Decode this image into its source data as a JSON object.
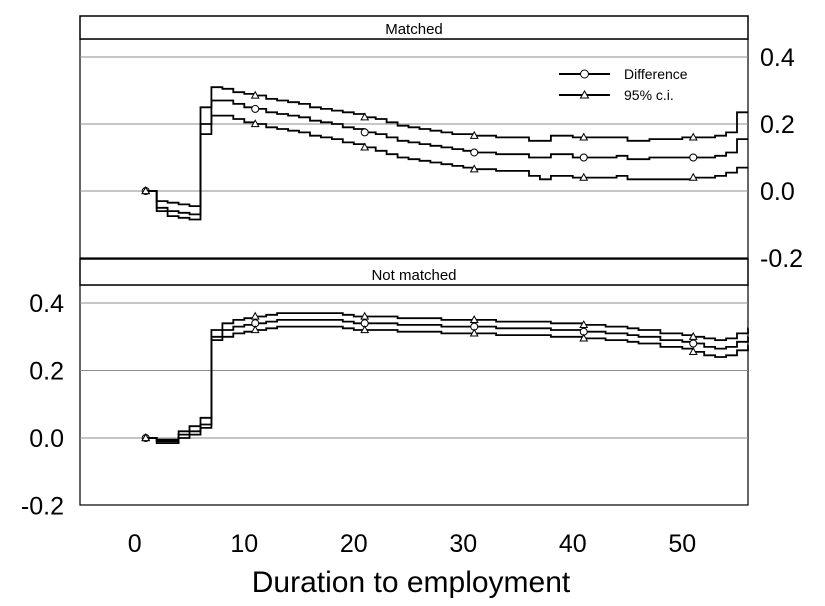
{
  "chart_data": [
    {
      "type": "line",
      "title": "Matched",
      "xlabel": "Duration to employment",
      "ylabel": "",
      "xlim": [
        -5,
        56
      ],
      "ylim": [
        -0.2,
        0.4
      ],
      "yticks": [
        "0.4",
        "0.2",
        "0.0",
        "-0.2"
      ],
      "xticks": [
        "0",
        "10",
        "20",
        "30",
        "40",
        "50"
      ],
      "y_axis_side": "right",
      "grid": "horizontal",
      "legend": {
        "placement": "top-right",
        "entries": [
          {
            "label": "Difference",
            "marker": "circle"
          },
          {
            "label": "95% c.i.",
            "marker": "triangle"
          }
        ]
      },
      "series": [
        {
          "name": "Difference",
          "marker": "circle",
          "x": [
            1,
            2,
            3,
            4,
            5,
            6,
            7,
            8,
            9,
            10,
            11,
            12,
            13,
            14,
            15,
            16,
            17,
            18,
            19,
            20,
            21,
            22,
            23,
            24,
            25,
            26,
            27,
            28,
            29,
            30,
            31,
            32,
            33,
            34,
            35,
            36,
            37,
            38,
            39,
            40,
            41,
            42,
            43,
            44,
            45,
            46,
            47,
            48,
            49,
            50,
            51,
            52,
            53,
            54,
            55,
            56
          ],
          "y": [
            0.0,
            -0.05,
            -0.06,
            -0.065,
            -0.07,
            0.2,
            0.27,
            0.27,
            0.26,
            0.25,
            0.245,
            0.235,
            0.23,
            0.225,
            0.22,
            0.21,
            0.205,
            0.2,
            0.19,
            0.185,
            0.175,
            0.17,
            0.16,
            0.15,
            0.145,
            0.14,
            0.135,
            0.13,
            0.125,
            0.12,
            0.115,
            0.115,
            0.11,
            0.11,
            0.11,
            0.1,
            0.1,
            0.11,
            0.11,
            0.1,
            0.1,
            0.1,
            0.1,
            0.105,
            0.095,
            0.095,
            0.1,
            0.1,
            0.1,
            0.1,
            0.1,
            0.1,
            0.105,
            0.115,
            0.155,
            0.155
          ]
        },
        {
          "name": "95% c.i.",
          "marker": "triangle",
          "x": [
            1,
            2,
            3,
            4,
            5,
            6,
            7,
            8,
            9,
            10,
            11,
            12,
            13,
            14,
            15,
            16,
            17,
            18,
            19,
            20,
            21,
            22,
            23,
            24,
            25,
            26,
            27,
            28,
            29,
            30,
            31,
            32,
            33,
            34,
            35,
            36,
            37,
            38,
            39,
            40,
            41,
            42,
            43,
            44,
            45,
            46,
            47,
            48,
            49,
            50,
            51,
            52,
            53,
            54,
            55,
            56
          ],
          "y": [
            0.0,
            -0.03,
            -0.035,
            -0.04,
            -0.045,
            0.25,
            0.31,
            0.305,
            0.295,
            0.29,
            0.285,
            0.275,
            0.27,
            0.265,
            0.26,
            0.25,
            0.245,
            0.24,
            0.235,
            0.23,
            0.22,
            0.215,
            0.205,
            0.195,
            0.19,
            0.185,
            0.18,
            0.175,
            0.17,
            0.17,
            0.165,
            0.165,
            0.16,
            0.16,
            0.16,
            0.15,
            0.15,
            0.165,
            0.165,
            0.16,
            0.16,
            0.16,
            0.16,
            0.16,
            0.15,
            0.15,
            0.155,
            0.155,
            0.155,
            0.16,
            0.16,
            0.16,
            0.165,
            0.175,
            0.235,
            0.235
          ]
        },
        {
          "name": "95% c.i.",
          "marker": "triangle",
          "x": [
            1,
            2,
            3,
            4,
            5,
            6,
            7,
            8,
            9,
            10,
            11,
            12,
            13,
            14,
            15,
            16,
            17,
            18,
            19,
            20,
            21,
            22,
            23,
            24,
            25,
            26,
            27,
            28,
            29,
            30,
            31,
            32,
            33,
            34,
            35,
            36,
            37,
            38,
            39,
            40,
            41,
            42,
            43,
            44,
            45,
            46,
            47,
            48,
            49,
            50,
            51,
            52,
            53,
            54,
            55,
            56
          ],
          "y": [
            0.0,
            -0.06,
            -0.075,
            -0.08,
            -0.085,
            0.17,
            0.225,
            0.225,
            0.215,
            0.205,
            0.2,
            0.19,
            0.185,
            0.18,
            0.175,
            0.165,
            0.16,
            0.155,
            0.145,
            0.14,
            0.13,
            0.12,
            0.11,
            0.1,
            0.095,
            0.09,
            0.085,
            0.08,
            0.075,
            0.07,
            0.065,
            0.065,
            0.06,
            0.06,
            0.06,
            0.045,
            0.035,
            0.045,
            0.045,
            0.04,
            0.04,
            0.04,
            0.04,
            0.045,
            0.035,
            0.035,
            0.035,
            0.035,
            0.035,
            0.035,
            0.04,
            0.04,
            0.045,
            0.055,
            0.07,
            0.07
          ]
        }
      ]
    },
    {
      "type": "line",
      "title": "Not matched",
      "xlabel": "Duration to employment",
      "ylabel": "",
      "xlim": [
        -5,
        56
      ],
      "ylim": [
        -0.2,
        0.4
      ],
      "yticks": [
        "0.4",
        "0.2",
        "0.0",
        "-0.2"
      ],
      "xticks": [
        "0",
        "10",
        "20",
        "30",
        "40",
        "50"
      ],
      "y_axis_side": "left",
      "grid": "horizontal",
      "series": [
        {
          "name": "Difference",
          "marker": "circle",
          "x": [
            1,
            2,
            3,
            4,
            5,
            6,
            7,
            8,
            9,
            10,
            11,
            12,
            13,
            14,
            15,
            16,
            17,
            18,
            19,
            20,
            21,
            22,
            23,
            24,
            25,
            26,
            27,
            28,
            29,
            30,
            31,
            32,
            33,
            34,
            35,
            36,
            37,
            38,
            39,
            40,
            41,
            42,
            43,
            44,
            45,
            46,
            47,
            48,
            49,
            50,
            51,
            52,
            53,
            54,
            55,
            56
          ],
          "y": [
            0.0,
            -0.01,
            -0.01,
            0.01,
            0.02,
            0.04,
            0.3,
            0.32,
            0.33,
            0.335,
            0.34,
            0.345,
            0.35,
            0.35,
            0.35,
            0.35,
            0.35,
            0.35,
            0.345,
            0.34,
            0.34,
            0.34,
            0.34,
            0.335,
            0.335,
            0.335,
            0.335,
            0.33,
            0.33,
            0.33,
            0.33,
            0.33,
            0.325,
            0.325,
            0.325,
            0.325,
            0.325,
            0.32,
            0.32,
            0.32,
            0.315,
            0.315,
            0.31,
            0.31,
            0.305,
            0.3,
            0.3,
            0.29,
            0.29,
            0.285,
            0.28,
            0.27,
            0.265,
            0.27,
            0.285,
            0.3
          ]
        },
        {
          "name": "95% c.i.",
          "marker": "triangle",
          "x": [
            1,
            2,
            3,
            4,
            5,
            6,
            7,
            8,
            9,
            10,
            11,
            12,
            13,
            14,
            15,
            16,
            17,
            18,
            19,
            20,
            21,
            22,
            23,
            24,
            25,
            26,
            27,
            28,
            29,
            30,
            31,
            32,
            33,
            34,
            35,
            36,
            37,
            38,
            39,
            40,
            41,
            42,
            43,
            44,
            45,
            46,
            47,
            48,
            49,
            50,
            51,
            52,
            53,
            54,
            55,
            56
          ],
          "y": [
            0.0,
            -0.005,
            -0.005,
            0.02,
            0.035,
            0.06,
            0.32,
            0.34,
            0.35,
            0.355,
            0.36,
            0.365,
            0.37,
            0.37,
            0.37,
            0.37,
            0.37,
            0.37,
            0.365,
            0.36,
            0.36,
            0.36,
            0.36,
            0.355,
            0.355,
            0.355,
            0.355,
            0.35,
            0.35,
            0.35,
            0.35,
            0.35,
            0.345,
            0.345,
            0.345,
            0.345,
            0.345,
            0.34,
            0.34,
            0.34,
            0.335,
            0.335,
            0.33,
            0.33,
            0.325,
            0.32,
            0.32,
            0.31,
            0.31,
            0.305,
            0.3,
            0.295,
            0.29,
            0.295,
            0.31,
            0.325
          ]
        },
        {
          "name": "95% c.i.",
          "marker": "triangle",
          "x": [
            1,
            2,
            3,
            4,
            5,
            6,
            7,
            8,
            9,
            10,
            11,
            12,
            13,
            14,
            15,
            16,
            17,
            18,
            19,
            20,
            21,
            22,
            23,
            24,
            25,
            26,
            27,
            28,
            29,
            30,
            31,
            32,
            33,
            34,
            35,
            36,
            37,
            38,
            39,
            40,
            41,
            42,
            43,
            44,
            45,
            46,
            47,
            48,
            49,
            50,
            51,
            52,
            53,
            54,
            55,
            56
          ],
          "y": [
            0.0,
            -0.015,
            -0.015,
            0.0,
            0.01,
            0.03,
            0.29,
            0.3,
            0.31,
            0.315,
            0.32,
            0.325,
            0.33,
            0.33,
            0.33,
            0.33,
            0.33,
            0.33,
            0.325,
            0.32,
            0.32,
            0.32,
            0.32,
            0.315,
            0.315,
            0.315,
            0.315,
            0.31,
            0.31,
            0.31,
            0.31,
            0.31,
            0.305,
            0.305,
            0.305,
            0.305,
            0.305,
            0.3,
            0.3,
            0.3,
            0.295,
            0.295,
            0.29,
            0.29,
            0.285,
            0.28,
            0.28,
            0.27,
            0.27,
            0.265,
            0.255,
            0.245,
            0.24,
            0.245,
            0.26,
            0.275
          ]
        }
      ]
    }
  ]
}
